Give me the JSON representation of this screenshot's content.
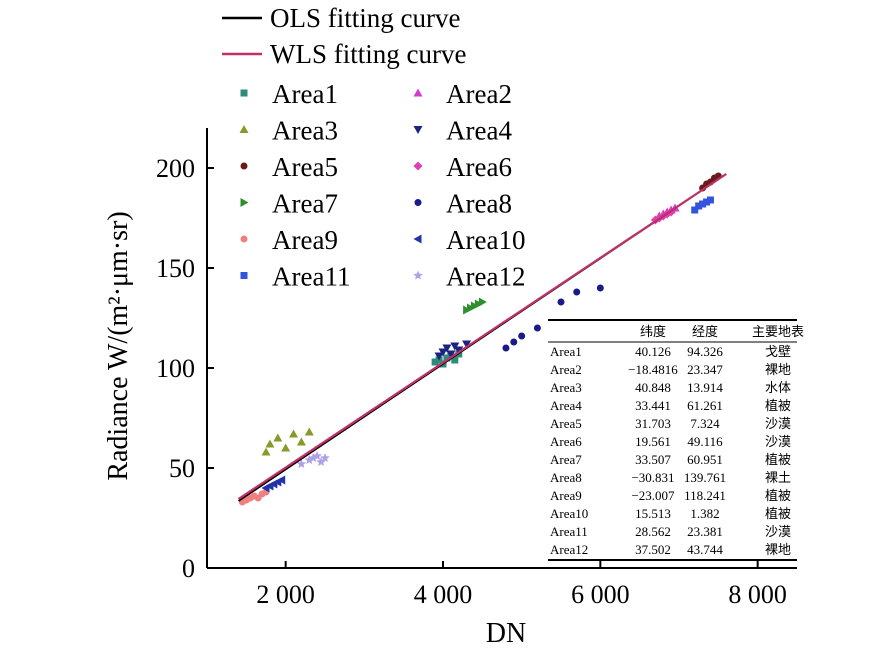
{
  "chart_data": {
    "type": "scatter",
    "title": "",
    "xlabel": "DN",
    "ylabel": "Radiance W/(m²·μm·sr)",
    "xlim": [
      1000,
      8500
    ],
    "ylim": [
      0,
      220
    ],
    "xticks": [
      2000,
      4000,
      6000,
      8000
    ],
    "xtick_labels": [
      "2 000",
      "4 000",
      "6 000",
      "8 000"
    ],
    "yticks": [
      0,
      50,
      100,
      150,
      200
    ],
    "ytick_labels": [
      "0",
      "50",
      "100",
      "150",
      "200"
    ],
    "grid": false,
    "legend_position": "top-left",
    "fit_lines": [
      {
        "name": "OLS fitting curve",
        "color": "#000000",
        "x": [
          1400,
          7600
        ],
        "y": [
          33.5,
          197.0
        ]
      },
      {
        "name": "WLS fitting curve",
        "color": "#c0306a",
        "x": [
          1400,
          7600
        ],
        "y": [
          34.5,
          197.0
        ]
      }
    ],
    "series": [
      {
        "name": "Area1",
        "color": "#2e8b7a",
        "marker": "square",
        "x": [
          3900,
          3950,
          4000,
          4050,
          4100,
          4150,
          4200
        ],
        "y": [
          103,
          104,
          102,
          105,
          106,
          104,
          107
        ]
      },
      {
        "name": "Area2",
        "color": "#d23bd2",
        "marker": "triangle-up",
        "x": [
          6750,
          6800,
          6850,
          6900,
          6950
        ],
        "y": [
          176,
          177,
          178,
          179,
          180
        ]
      },
      {
        "name": "Area3",
        "color": "#8a9a2a",
        "marker": "triangle-up",
        "x": [
          1750,
          1800,
          1900,
          2000,
          2100,
          2200,
          2300
        ],
        "y": [
          58,
          62,
          65,
          60,
          67,
          63,
          68
        ]
      },
      {
        "name": "Area4",
        "color": "#1a237e",
        "marker": "triangle-down",
        "x": [
          3950,
          4000,
          4050,
          4100,
          4150,
          4200,
          4300
        ],
        "y": [
          106,
          108,
          110,
          107,
          111,
          109,
          112
        ]
      },
      {
        "name": "Area5",
        "color": "#6b1a1a",
        "marker": "circle",
        "x": [
          7300,
          7350,
          7400,
          7450,
          7500
        ],
        "y": [
          190,
          192,
          193,
          195,
          196
        ]
      },
      {
        "name": "Area6",
        "color": "#e040b0",
        "marker": "diamond",
        "x": [
          6700,
          6750,
          6800,
          6850,
          6900
        ],
        "y": [
          174,
          175,
          176,
          177,
          178
        ]
      },
      {
        "name": "Area7",
        "color": "#2f8f2f",
        "marker": "triangle-right",
        "x": [
          4300,
          4350,
          4400,
          4450,
          4500
        ],
        "y": [
          129,
          130,
          131,
          132,
          133
        ]
      },
      {
        "name": "Area8",
        "color": "#1a1a8a",
        "marker": "circle",
        "x": [
          4800,
          4900,
          5000,
          5200,
          5500,
          5700,
          6000
        ],
        "y": [
          110,
          113,
          116,
          120,
          133,
          138,
          140
        ]
      },
      {
        "name": "Area9",
        "color": "#f08080",
        "marker": "circle",
        "x": [
          1450,
          1500,
          1550,
          1600,
          1650,
          1700,
          1750
        ],
        "y": [
          33,
          34,
          35,
          36,
          35,
          37,
          38
        ]
      },
      {
        "name": "Area10",
        "color": "#2233aa",
        "marker": "triangle-left",
        "x": [
          1750,
          1800,
          1850,
          1900,
          1950
        ],
        "y": [
          40,
          41,
          42,
          43,
          44
        ]
      },
      {
        "name": "Area11",
        "color": "#3355dd",
        "marker": "square",
        "x": [
          7200,
          7250,
          7300,
          7350,
          7400
        ],
        "y": [
          179,
          181,
          182,
          183,
          184
        ]
      },
      {
        "name": "Area12",
        "color": "#b0a0e8",
        "marker": "star",
        "x": [
          2200,
          2300,
          2350,
          2400,
          2450,
          2500
        ],
        "y": [
          52,
          54,
          55,
          56,
          53,
          55
        ]
      }
    ],
    "table": {
      "columns": [
        "",
        "纬度",
        "经度",
        "主要地表"
      ],
      "rows": [
        [
          "Area1",
          "40.126",
          "94.326",
          "戈壁"
        ],
        [
          "Area2",
          "−18.4816",
          "23.347",
          "裸地"
        ],
        [
          "Area3",
          "40.848",
          "13.914",
          "水体"
        ],
        [
          "Area4",
          "33.441",
          "61.261",
          "植被"
        ],
        [
          "Area5",
          "31.703",
          "7.324",
          "沙漠"
        ],
        [
          "Area6",
          "19.561",
          "49.116",
          "沙漠"
        ],
        [
          "Area7",
          "33.507",
          "60.951",
          "植被"
        ],
        [
          "Area8",
          "−30.831",
          "139.761",
          "裸土"
        ],
        [
          "Area9",
          "−23.007",
          "118.241",
          "植被"
        ],
        [
          "Area10",
          "15.513",
          "1.382",
          "植被"
        ],
        [
          "Area11",
          "28.562",
          "23.381",
          "沙漠"
        ],
        [
          "Area12",
          "37.502",
          "43.744",
          "裸地"
        ]
      ]
    }
  }
}
